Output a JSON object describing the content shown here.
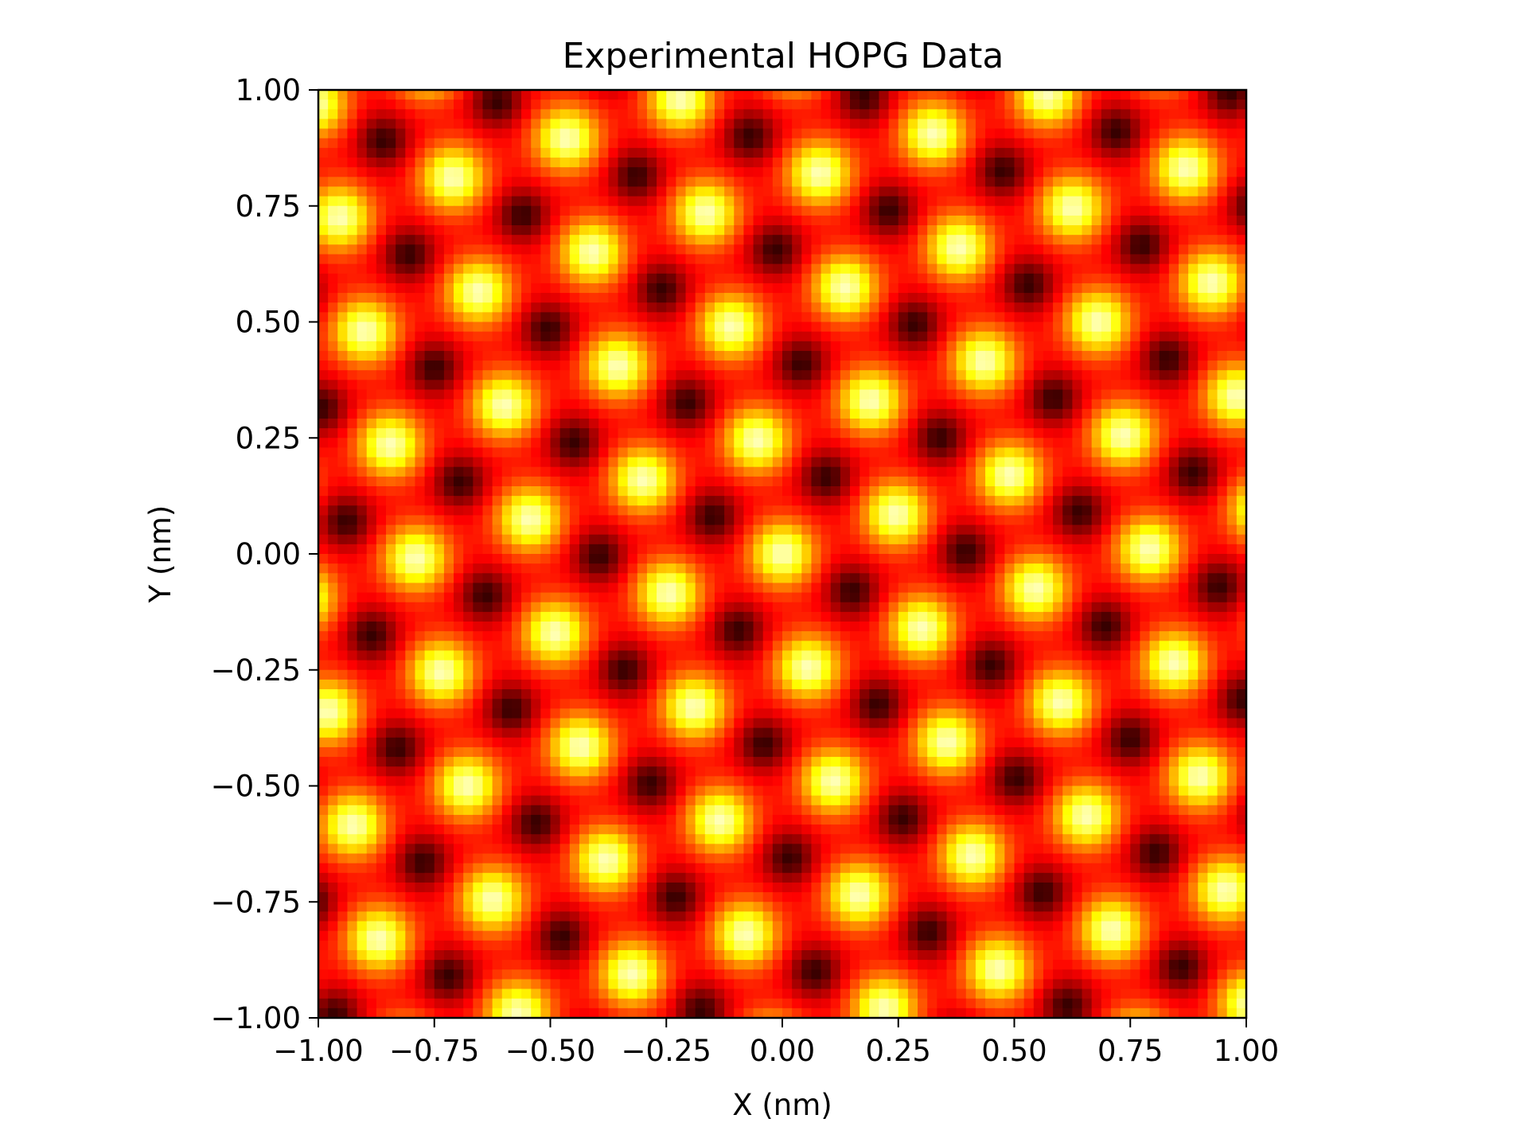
{
  "chart_data": {
    "type": "heatmap",
    "title": "Experimental HOPG Data",
    "xlabel": "X (nm)",
    "ylabel": "Y (nm)",
    "xlim": [
      -1.0,
      1.0
    ],
    "ylim": [
      -1.0,
      1.0
    ],
    "x_ticks": [
      -1.0,
      -0.75,
      -0.5,
      -0.25,
      0.0,
      0.25,
      0.5,
      0.75,
      1.0
    ],
    "y_ticks": [
      -1.0,
      -0.75,
      -0.5,
      -0.25,
      0.0,
      0.25,
      0.5,
      0.75,
      1.0
    ],
    "x_tick_labels": [
      "−1.00",
      "−0.75",
      "−0.50",
      "−0.25",
      "0.00",
      "0.25",
      "0.50",
      "0.75",
      "1.00"
    ],
    "y_tick_labels": [
      "−1.00",
      "−0.75",
      "−0.50",
      "−0.25",
      "0.00",
      "0.25",
      "0.50",
      "0.75",
      "1.00"
    ],
    "colormap": "hot",
    "colors": {
      "dark": "#3a0000",
      "mid": "#e81c00",
      "bright": "#ffff00",
      "axis": "#000000"
    },
    "pattern": {
      "description_shown": "bright yellow atomic spots on a red background arranged in a tilted hexagonal lattice",
      "lattice_vector_a": [
        0.245,
        0.085
      ],
      "lattice_vector_b": [
        -0.055,
        0.245
      ],
      "spot_width": 0.048,
      "z_range": [
        0.0,
        1.0
      ]
    }
  }
}
